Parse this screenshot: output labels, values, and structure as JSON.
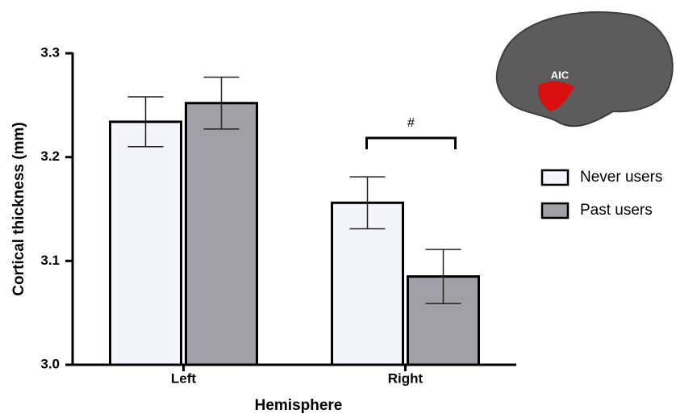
{
  "chart_data": {
    "type": "bar",
    "x_label": "Hemisphere",
    "y_label": "Cortical thickness (mm)",
    "categories": [
      "Left",
      "Right"
    ],
    "series": [
      {
        "name": "Never users",
        "color": "#f4f5fc",
        "values": [
          3.234,
          3.156
        ],
        "errors": [
          0.024,
          0.025
        ]
      },
      {
        "name": "Past users",
        "color": "#a0a0a6",
        "values": [
          3.252,
          3.085
        ],
        "errors": [
          0.025,
          0.026
        ]
      }
    ],
    "ylim": [
      3.0,
      3.3
    ],
    "yticks": [
      {
        "value": 3,
        "label": "3.0"
      },
      3.1,
      3.2,
      3.3
    ],
    "annotation": "#",
    "inset_label": "AIC"
  }
}
